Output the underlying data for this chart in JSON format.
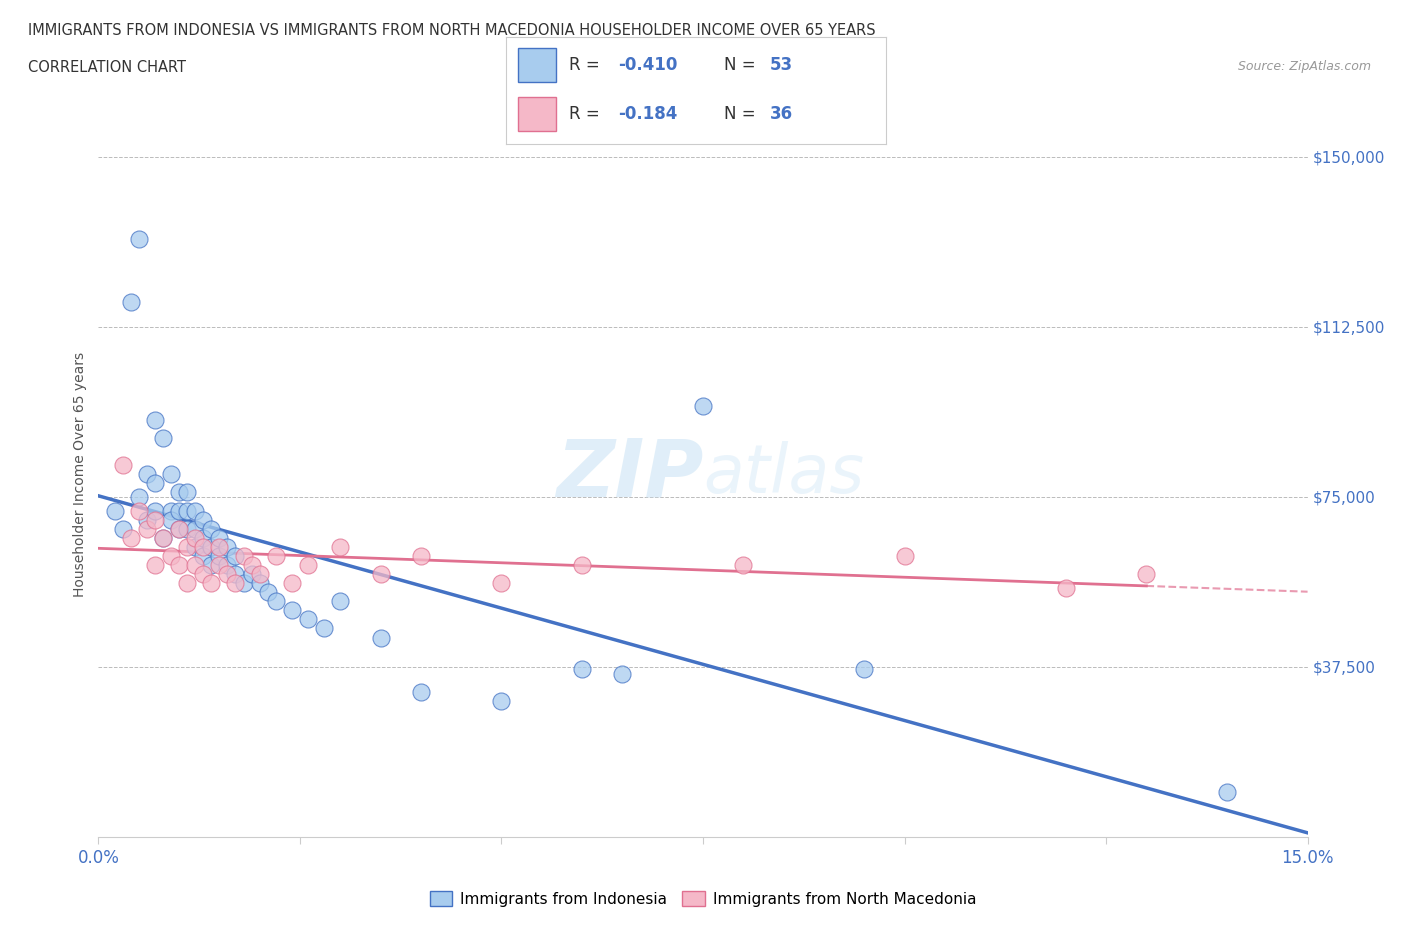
{
  "title_line1": "IMMIGRANTS FROM INDONESIA VS IMMIGRANTS FROM NORTH MACEDONIA HOUSEHOLDER INCOME OVER 65 YEARS",
  "title_line2": "CORRELATION CHART",
  "source": "Source: ZipAtlas.com",
  "ylabel": "Householder Income Over 65 years",
  "xlim": [
    0.0,
    0.15
  ],
  "ylim": [
    0,
    160000
  ],
  "xticks": [
    0.0,
    0.025,
    0.05,
    0.075,
    0.1,
    0.125,
    0.15
  ],
  "xticklabels": [
    "0.0%",
    "",
    "",
    "",
    "",
    "",
    "15.0%"
  ],
  "ytick_positions": [
    0,
    37500,
    75000,
    112500,
    150000
  ],
  "ytick_labels": [
    "",
    "$37,500",
    "$75,000",
    "$112,500",
    "$150,000"
  ],
  "legend1_r": "-0.410",
  "legend1_n": "53",
  "legend2_r": "-0.184",
  "legend2_n": "36",
  "color_indonesia": "#a8ccee",
  "color_macedonia": "#f5b8c8",
  "color_indonesia_line": "#4472c4",
  "color_macedonia_line": "#e07090",
  "watermark": "ZIPatlas",
  "indonesia_x": [
    0.002,
    0.003,
    0.004,
    0.005,
    0.005,
    0.006,
    0.006,
    0.007,
    0.007,
    0.007,
    0.008,
    0.008,
    0.009,
    0.009,
    0.009,
    0.01,
    0.01,
    0.01,
    0.011,
    0.011,
    0.011,
    0.012,
    0.012,
    0.012,
    0.013,
    0.013,
    0.013,
    0.014,
    0.014,
    0.014,
    0.015,
    0.015,
    0.016,
    0.016,
    0.017,
    0.017,
    0.018,
    0.019,
    0.02,
    0.021,
    0.022,
    0.024,
    0.026,
    0.028,
    0.03,
    0.035,
    0.04,
    0.05,
    0.06,
    0.065,
    0.075,
    0.095,
    0.14
  ],
  "indonesia_y": [
    72000,
    68000,
    118000,
    132000,
    75000,
    80000,
    70000,
    92000,
    72000,
    78000,
    66000,
    88000,
    72000,
    80000,
    70000,
    68000,
    72000,
    76000,
    68000,
    72000,
    76000,
    64000,
    68000,
    72000,
    62000,
    66000,
    70000,
    60000,
    64000,
    68000,
    62000,
    66000,
    60000,
    64000,
    58000,
    62000,
    56000,
    58000,
    56000,
    54000,
    52000,
    50000,
    48000,
    46000,
    52000,
    44000,
    32000,
    30000,
    37000,
    36000,
    95000,
    37000,
    10000
  ],
  "macedonia_x": [
    0.003,
    0.004,
    0.005,
    0.006,
    0.007,
    0.007,
    0.008,
    0.009,
    0.01,
    0.01,
    0.011,
    0.011,
    0.012,
    0.012,
    0.013,
    0.013,
    0.014,
    0.015,
    0.015,
    0.016,
    0.017,
    0.018,
    0.019,
    0.02,
    0.022,
    0.024,
    0.026,
    0.03,
    0.035,
    0.04,
    0.05,
    0.06,
    0.08,
    0.1,
    0.12,
    0.13
  ],
  "macedonia_y": [
    82000,
    66000,
    72000,
    68000,
    60000,
    70000,
    66000,
    62000,
    60000,
    68000,
    56000,
    64000,
    60000,
    66000,
    58000,
    64000,
    56000,
    60000,
    64000,
    58000,
    56000,
    62000,
    60000,
    58000,
    62000,
    56000,
    60000,
    64000,
    58000,
    62000,
    56000,
    60000,
    60000,
    62000,
    55000,
    58000
  ]
}
